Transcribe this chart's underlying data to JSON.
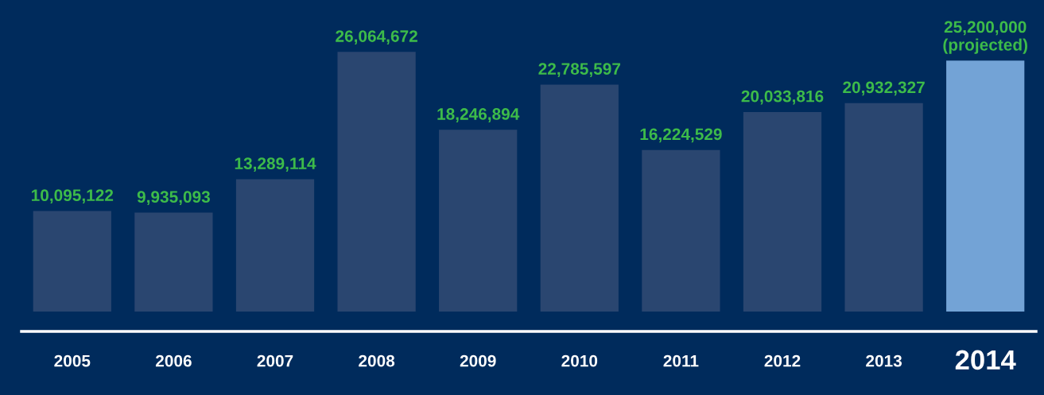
{
  "chart_data": {
    "type": "bar",
    "categories": [
      "2005",
      "2006",
      "2007",
      "2008",
      "2009",
      "2010",
      "2011",
      "2012",
      "2013",
      "2014"
    ],
    "values": [
      10095122,
      9935093,
      13289114,
      26064672,
      18246894,
      22785597,
      16224529,
      20033816,
      20932327,
      25200000
    ],
    "colors": [
      "#2a4670",
      "#2a4670",
      "#2a4670",
      "#2a4670",
      "#2a4670",
      "#2a4670",
      "#2a4670",
      "#2a4670",
      "#2a4670",
      "#73a3d6"
    ],
    "value_labels": [
      "10,095,122",
      "9,935,093",
      "13,289,114",
      "26,064,672",
      "18,246,894",
      "22,785,597",
      "16,224,529",
      "20,033,816",
      "20,932,327",
      "25,200,000\n(projected)"
    ],
    "grid": false,
    "legend": false
  }
}
